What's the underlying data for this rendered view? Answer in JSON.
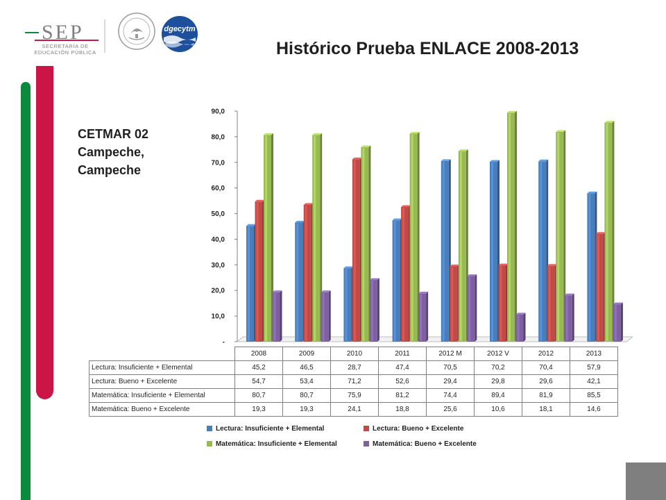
{
  "header": {
    "sep_logo_text": "SEP",
    "sep_subtitle_line1": "SECRETARÍA DE",
    "sep_subtitle_line2": "EDUCACIÓN PÚBLICA",
    "dgecytm_logo_text": "dgecytm",
    "seal_name": "mexico-coat-of-arms-icon"
  },
  "page": {
    "title": "Histórico Prueba ENLACE 2008-2013",
    "school_line1": "CETMAR 02",
    "school_line2": "Campeche,",
    "school_line3": "Campeche"
  },
  "colors": {
    "green_band": "#0b8a3e",
    "red_band": "#cc1547",
    "gray_block": "#7f7f7f"
  },
  "chart_data": {
    "type": "bar",
    "style": "3d-clustered-column",
    "categories": [
      "2008",
      "2009",
      "2010",
      "2011",
      "2012 M",
      "2012 V",
      "2012",
      "2013"
    ],
    "series": [
      {
        "name": "Lectura: Insuficiente + Elemental",
        "color": "#4a7ebb",
        "values": [
          45.2,
          46.5,
          28.7,
          47.4,
          70.5,
          70.2,
          70.4,
          57.9
        ]
      },
      {
        "name": "Lectura: Bueno + Excelente",
        "color": "#be4b48",
        "values": [
          54.7,
          53.4,
          71.2,
          52.6,
          29.4,
          29.8,
          29.6,
          42.1
        ]
      },
      {
        "name": "Matemática: Insuficiente + Elemental",
        "color": "#98b954",
        "values": [
          80.7,
          80.7,
          75.9,
          81.2,
          74.4,
          89.4,
          81.9,
          85.5
        ]
      },
      {
        "name": "Matemática: Bueno + Excelente",
        "color": "#7d60a0",
        "values": [
          19.3,
          19.3,
          24.1,
          18.8,
          25.6,
          10.6,
          18.1,
          14.6
        ]
      }
    ],
    "yticks": [
      "-",
      "10,0",
      "20,0",
      "30,0",
      "40,0",
      "50,0",
      "60,0",
      "70,0",
      "80,0",
      "90,0"
    ],
    "ylim": [
      0,
      90
    ],
    "value_labels": [
      [
        "45,2",
        "46,5",
        "28,7",
        "47,4",
        "70,5",
        "70,2",
        "70,4",
        "57,9"
      ],
      [
        "54,7",
        "53,4",
        "71,2",
        "52,6",
        "29,4",
        "29,8",
        "29,6",
        "42,1"
      ],
      [
        "80,7",
        "80,7",
        "75,9",
        "81,2",
        "74,4",
        "89,4",
        "81,9",
        "85,5"
      ],
      [
        "19,3",
        "19,3",
        "24,1",
        "18,8",
        "25,6",
        "10,6",
        "18,1",
        "14,6"
      ]
    ],
    "legend_position": "bottom",
    "grid": false,
    "data_table": true
  }
}
